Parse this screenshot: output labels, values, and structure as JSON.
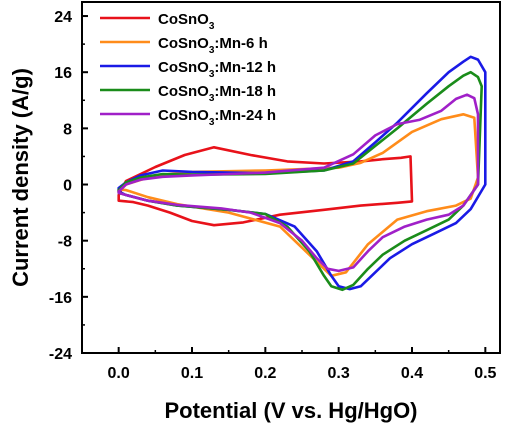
{
  "chart_data": {
    "type": "line",
    "title": "",
    "xlabel": "Potential (V vs. Hg/HgO)",
    "ylabel": "Current density (A/g)",
    "xlim": [
      -0.05,
      0.52
    ],
    "ylim": [
      -24,
      26
    ],
    "xticks": [
      0.0,
      0.1,
      0.2,
      0.3,
      0.4,
      0.5
    ],
    "xtick_labels": [
      "0.0",
      "0.1",
      "0.2",
      "0.3",
      "0.4",
      "0.5"
    ],
    "yticks": [
      -24,
      -16,
      -8,
      0,
      8,
      16,
      24
    ],
    "ytick_labels": [
      "-24",
      "-16",
      "-8",
      "0",
      "8",
      "16",
      "24"
    ],
    "legend_position": "top-left",
    "series": [
      {
        "name": "CoSnO3",
        "label_main": "CoSnO",
        "label_sub": "3",
        "label_rest": "",
        "color": "#e8121a",
        "x": [
          0.0,
          0.01,
          0.05,
          0.09,
          0.13,
          0.18,
          0.23,
          0.28,
          0.33,
          0.36,
          0.385,
          0.398,
          0.4,
          0.38,
          0.33,
          0.28,
          0.22,
          0.17,
          0.13,
          0.1,
          0.07,
          0.04,
          0.02,
          0.0,
          0.0
        ],
        "y": [
          -1.5,
          0.5,
          2.5,
          4.2,
          5.3,
          4.2,
          3.3,
          3.0,
          3.3,
          3.6,
          3.8,
          4.0,
          -2.4,
          -2.6,
          -3.0,
          -3.6,
          -4.3,
          -5.4,
          -5.8,
          -5.2,
          -4.0,
          -3.0,
          -2.5,
          -2.3,
          -1.5
        ]
      },
      {
        "name": "CoSnO3:Mn-6 h",
        "label_main": "CoSnO",
        "label_sub": "3",
        "label_rest": ":Mn-6 h",
        "color": "#ff8c1a",
        "x": [
          0.0,
          0.01,
          0.05,
          0.1,
          0.2,
          0.3,
          0.33,
          0.36,
          0.4,
          0.44,
          0.47,
          0.485,
          0.49,
          0.48,
          0.46,
          0.42,
          0.38,
          0.34,
          0.31,
          0.29,
          0.26,
          0.22,
          0.15,
          0.08,
          0.04,
          0.01,
          0.0,
          0.0
        ],
        "y": [
          -1.0,
          0.0,
          1.3,
          1.8,
          2.0,
          2.4,
          3.1,
          4.5,
          7.5,
          9.3,
          10.0,
          9.5,
          1.0,
          -2.0,
          -3.0,
          -3.8,
          -5.0,
          -8.5,
          -12.5,
          -13.0,
          -10.0,
          -6.0,
          -4.0,
          -2.8,
          -1.8,
          -0.8,
          -0.7,
          -1.0
        ]
      },
      {
        "name": "CoSnO3:Mn-12 h",
        "label_main": "CoSnO",
        "label_sub": "3",
        "label_rest": ":Mn-12 h",
        "color": "#1a1ae6",
        "x": [
          0.0,
          0.01,
          0.03,
          0.06,
          0.1,
          0.2,
          0.28,
          0.32,
          0.35,
          0.38,
          0.42,
          0.45,
          0.47,
          0.48,
          0.49,
          0.5,
          0.5,
          0.48,
          0.46,
          0.43,
          0.4,
          0.37,
          0.35,
          0.33,
          0.315,
          0.3,
          0.29,
          0.27,
          0.24,
          0.2,
          0.15,
          0.08,
          0.04,
          0.01,
          0.0,
          0.0
        ],
        "y": [
          -0.5,
          0.3,
          1.3,
          2.0,
          1.8,
          1.6,
          2.0,
          3.3,
          6.0,
          8.8,
          13.0,
          16.0,
          17.5,
          18.2,
          17.8,
          16.0,
          0.0,
          -3.5,
          -5.5,
          -7.0,
          -8.5,
          -10.5,
          -12.5,
          -14.5,
          -14.9,
          -14.5,
          -13.0,
          -9.5,
          -6.0,
          -4.2,
          -3.6,
          -3.0,
          -2.3,
          -1.5,
          -1.0,
          -0.5
        ]
      },
      {
        "name": "CoSnO3:Mn-18 h",
        "label_main": "CoSnO",
        "label_sub": "3",
        "label_rest": ":Mn-18 h",
        "color": "#1a8c1a",
        "x": [
          0.0,
          0.01,
          0.03,
          0.06,
          0.1,
          0.2,
          0.28,
          0.32,
          0.35,
          0.38,
          0.42,
          0.45,
          0.47,
          0.48,
          0.49,
          0.495,
          0.49,
          0.47,
          0.45,
          0.42,
          0.39,
          0.36,
          0.34,
          0.32,
          0.305,
          0.29,
          0.28,
          0.26,
          0.23,
          0.2,
          0.15,
          0.08,
          0.04,
          0.01,
          0.0,
          0.0
        ],
        "y": [
          -0.8,
          0.3,
          1.0,
          1.5,
          1.4,
          1.5,
          2.0,
          3.0,
          5.5,
          8.0,
          11.5,
          14.0,
          15.5,
          16.0,
          15.3,
          14.0,
          0.0,
          -3.0,
          -5.0,
          -6.5,
          -8.0,
          -10.0,
          -12.0,
          -14.3,
          -15.0,
          -14.5,
          -13.0,
          -9.5,
          -6.0,
          -4.2,
          -3.6,
          -3.0,
          -2.3,
          -1.5,
          -1.2,
          -0.8
        ]
      },
      {
        "name": "CoSnO3:Mn-24 h",
        "label_main": "CoSnO",
        "label_sub": "3",
        "label_rest": ":Mn-24 h",
        "color": "#a020c8",
        "x": [
          0.0,
          0.01,
          0.03,
          0.06,
          0.1,
          0.2,
          0.28,
          0.32,
          0.35,
          0.38,
          0.41,
          0.44,
          0.46,
          0.475,
          0.485,
          0.49,
          0.49,
          0.47,
          0.45,
          0.42,
          0.39,
          0.36,
          0.34,
          0.32,
          0.3,
          0.285,
          0.27,
          0.25,
          0.22,
          0.18,
          0.14,
          0.08,
          0.04,
          0.01,
          0.0,
          0.0
        ],
        "y": [
          -1.0,
          0.0,
          0.7,
          1.1,
          1.3,
          1.7,
          2.4,
          4.3,
          7.0,
          8.6,
          9.2,
          10.5,
          12.2,
          12.8,
          12.3,
          10.0,
          0.0,
          -3.0,
          -4.3,
          -5.0,
          -6.0,
          -7.5,
          -9.5,
          -11.8,
          -12.3,
          -12.0,
          -10.5,
          -8.0,
          -5.5,
          -4.0,
          -3.4,
          -2.9,
          -2.3,
          -1.5,
          -1.2,
          -1.0
        ]
      }
    ]
  }
}
